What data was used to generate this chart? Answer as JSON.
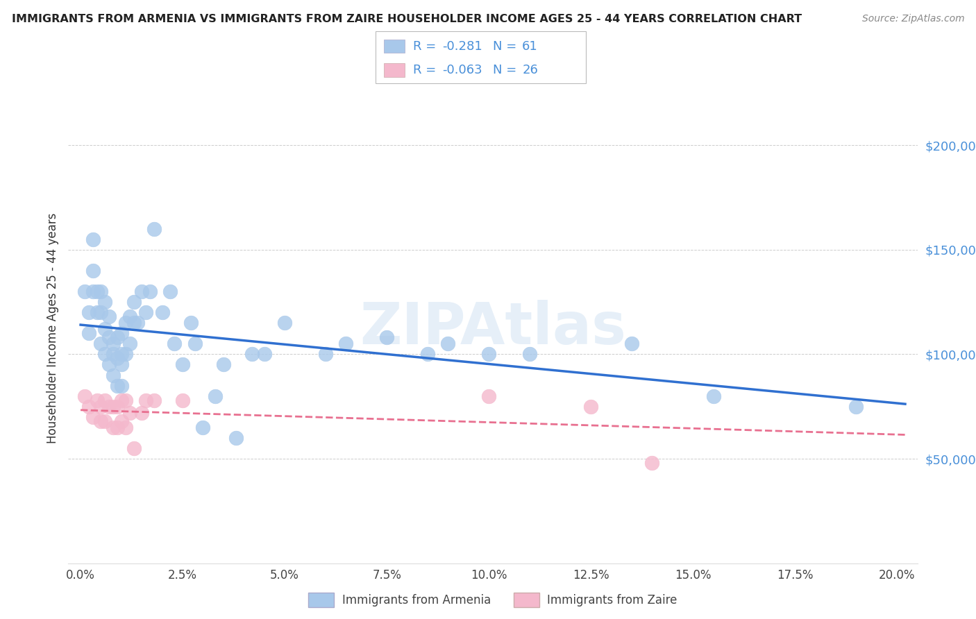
{
  "title": "IMMIGRANTS FROM ARMENIA VS IMMIGRANTS FROM ZAIRE HOUSEHOLDER INCOME AGES 25 - 44 YEARS CORRELATION CHART",
  "source": "Source: ZipAtlas.com",
  "ylabel": "Householder Income Ages 25 - 44 years",
  "xtick_vals": [
    0.0,
    0.025,
    0.05,
    0.075,
    0.1,
    0.125,
    0.15,
    0.175,
    0.2
  ],
  "xtick_labels": [
    "0.0%",
    "2.5%",
    "5.0%",
    "7.5%",
    "10.0%",
    "12.5%",
    "15.0%",
    "17.5%",
    "20.0%"
  ],
  "ylim": [
    0,
    225000
  ],
  "xlim": [
    -0.003,
    0.205
  ],
  "yticks": [
    50000,
    100000,
    150000,
    200000
  ],
  "ytick_labels": [
    "$50,000",
    "$100,000",
    "$150,000",
    "$200,000"
  ],
  "armenia_R": -0.281,
  "armenia_N": 61,
  "zaire_R": -0.063,
  "zaire_N": 26,
  "armenia_color": "#a8c8ea",
  "zaire_color": "#f4b8cc",
  "armenia_line_color": "#3070d0",
  "zaire_line_color": "#e87090",
  "legend_text_color": "#4a90d9",
  "watermark": "ZIPAtlas",
  "armenia_x": [
    0.001,
    0.002,
    0.002,
    0.003,
    0.003,
    0.003,
    0.004,
    0.004,
    0.005,
    0.005,
    0.005,
    0.006,
    0.006,
    0.006,
    0.007,
    0.007,
    0.007,
    0.008,
    0.008,
    0.008,
    0.009,
    0.009,
    0.009,
    0.01,
    0.01,
    0.01,
    0.01,
    0.011,
    0.011,
    0.012,
    0.012,
    0.013,
    0.013,
    0.014,
    0.015,
    0.016,
    0.017,
    0.018,
    0.02,
    0.022,
    0.023,
    0.025,
    0.027,
    0.028,
    0.03,
    0.033,
    0.035,
    0.038,
    0.042,
    0.045,
    0.05,
    0.06,
    0.065,
    0.075,
    0.085,
    0.09,
    0.1,
    0.11,
    0.135,
    0.155,
    0.19
  ],
  "armenia_y": [
    130000,
    120000,
    110000,
    155000,
    140000,
    130000,
    130000,
    120000,
    130000,
    120000,
    105000,
    125000,
    112000,
    100000,
    118000,
    108000,
    95000,
    105000,
    100000,
    90000,
    108000,
    98000,
    85000,
    110000,
    100000,
    95000,
    85000,
    115000,
    100000,
    118000,
    105000,
    125000,
    115000,
    115000,
    130000,
    120000,
    130000,
    160000,
    120000,
    130000,
    105000,
    95000,
    115000,
    105000,
    65000,
    80000,
    95000,
    60000,
    100000,
    100000,
    115000,
    100000,
    105000,
    108000,
    100000,
    105000,
    100000,
    100000,
    105000,
    80000,
    75000
  ],
  "zaire_x": [
    0.001,
    0.002,
    0.003,
    0.004,
    0.005,
    0.005,
    0.006,
    0.006,
    0.007,
    0.008,
    0.008,
    0.009,
    0.009,
    0.01,
    0.01,
    0.011,
    0.011,
    0.012,
    0.013,
    0.015,
    0.016,
    0.018,
    0.025,
    0.1,
    0.125,
    0.14
  ],
  "zaire_y": [
    80000,
    75000,
    70000,
    78000,
    75000,
    68000,
    78000,
    68000,
    75000,
    75000,
    65000,
    75000,
    65000,
    78000,
    68000,
    78000,
    65000,
    72000,
    55000,
    72000,
    78000,
    78000,
    78000,
    80000,
    75000,
    48000
  ]
}
